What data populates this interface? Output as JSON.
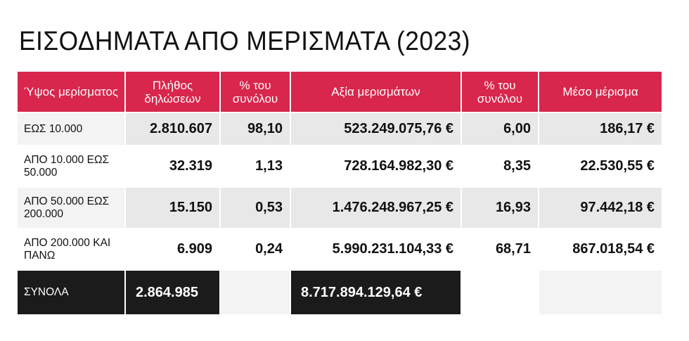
{
  "title": "ΕΙΣΟΔΗΜΑΤΑ ΑΠΟ ΜΕΡΙΣΜΑΤΑ (2023)",
  "table": {
    "headers": [
      "Ύψος μερίσματος",
      "Πλήθος δηλώσεων",
      "% του συνόλου",
      "Αξία μερισμάτων",
      "% του συνόλου",
      "Μέσο μέρισμα"
    ],
    "rows": [
      {
        "range": "ΕΩΣ 10.000",
        "count": "2.810.607",
        "count_pct": "98,10",
        "value": "523.249.075,76 €",
        "value_pct": "6,00",
        "average": "186,17 €"
      },
      {
        "range": "ΑΠΟ 10.000 ΕΩΣ 50.000",
        "count": "32.319",
        "count_pct": "1,13",
        "value": "728.164.982,30 €",
        "value_pct": "8,35",
        "average": "22.530,55 €"
      },
      {
        "range": "ΑΠΟ 50.000 ΕΩΣ 200.000",
        "count": "15.150",
        "count_pct": "0,53",
        "value": "1.476.248.967,25 €",
        "value_pct": "16,93",
        "average": "97.442,18 €"
      },
      {
        "range": "ΑΠΟ 200.000 ΚΑΙ ΠΑΝΩ",
        "count": "6.909",
        "count_pct": "0,24",
        "value": "5.990.231.104,33 €",
        "value_pct": "68,71",
        "average": "867.018,54 €"
      }
    ],
    "totals": {
      "label": "ΣΥΝΟΛΑ",
      "count": "2.864.985",
      "value": "8.717.894.129,64 €"
    }
  },
  "colors": {
    "header": "#d8264c",
    "totals": "#1b1b1b",
    "shade": "#e8e8e8"
  }
}
